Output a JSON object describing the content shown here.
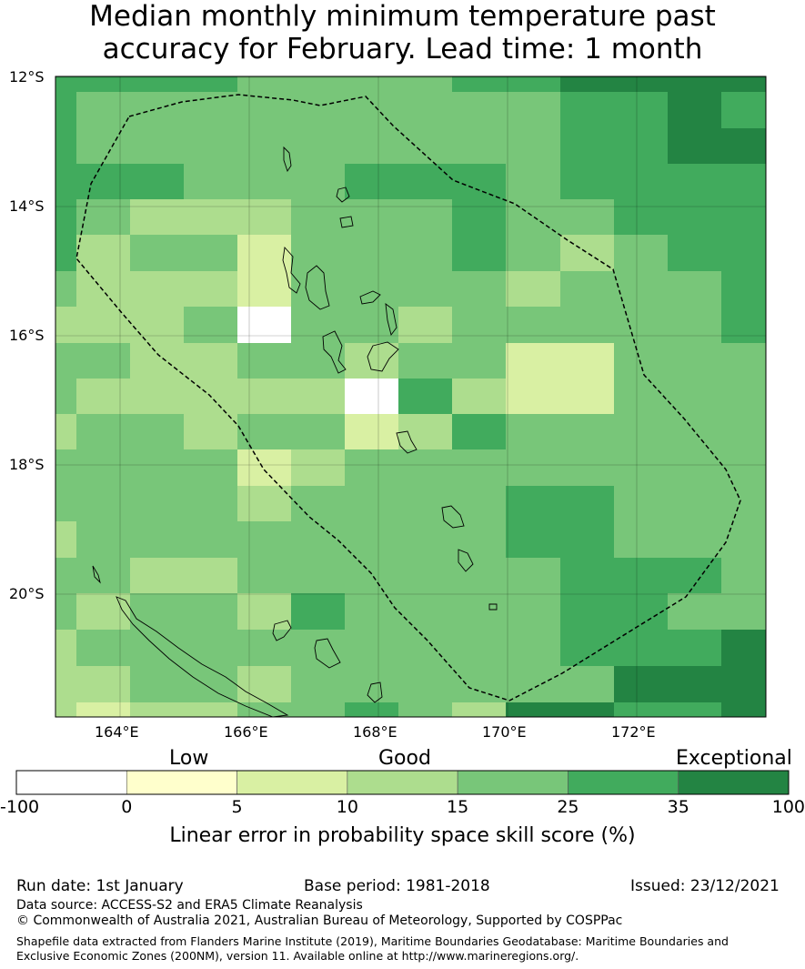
{
  "title_line1": "Median monthly minimum temperature past",
  "title_line2": "accuracy for February. Lead time: 1 month",
  "map": {
    "lat_labels": [
      "12°S",
      "14°S",
      "16°S",
      "18°S",
      "20°S"
    ],
    "lon_labels": [
      "164°E",
      "166°E",
      "168°E",
      "170°E",
      "172°E"
    ],
    "extent": {
      "lon_min": 162.8,
      "lon_max": 173.8,
      "lat_min": -21.9,
      "lat_max": -12.0
    },
    "grid_cell_deg": 0.833
  },
  "legend": {
    "categories": [
      "Low",
      "Good",
      "Exceptional"
    ],
    "bins": [
      {
        "from": -100,
        "to": 0,
        "color": "#ffffff"
      },
      {
        "from": 0,
        "to": 5,
        "color": "#ffffcc"
      },
      {
        "from": 5,
        "to": 10,
        "color": "#d9f0a3"
      },
      {
        "from": 10,
        "to": 15,
        "color": "#addd8e"
      },
      {
        "from": 15,
        "to": 25,
        "color": "#78c679"
      },
      {
        "from": 25,
        "to": 35,
        "color": "#41ab5d"
      },
      {
        "from": 35,
        "to": 100,
        "color": "#238443"
      }
    ],
    "tick_labels": [
      "-100",
      "0",
      "5",
      "10",
      "15",
      "25",
      "35",
      "100"
    ],
    "axis_title": "Linear error in probability space skill score (%)"
  },
  "footer": {
    "run_date": "Run date: 1st January",
    "base_period": "Base period: 1981-2018",
    "issued": "Issued: 23/12/2021",
    "data_source": "Data source: ACCESS-S2 and ERA5 Climate Reanalysis",
    "copyright": "© Commonwealth of Australia 2021, Australian Bureau of Meteorology, Supported by COSPPac",
    "shapefile": "Shapefile data extracted from Flanders Marine Institute (2019), Maritime Boundaries Geodatabase: Maritime Boundaries and Exclusive Economic Zones (200NM), version 11. Available online at http://www.marineregions.org/."
  }
}
